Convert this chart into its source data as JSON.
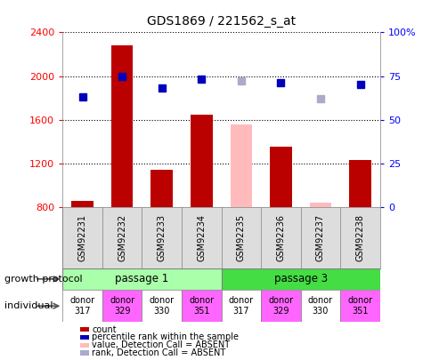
{
  "title": "GDS1869 / 221562_s_at",
  "samples": [
    "GSM92231",
    "GSM92232",
    "GSM92233",
    "GSM92234",
    "GSM92235",
    "GSM92236",
    "GSM92237",
    "GSM92238"
  ],
  "counts": [
    860,
    2280,
    1140,
    1650,
    null,
    1350,
    null,
    1230
  ],
  "absent_counts": [
    null,
    null,
    null,
    null,
    1560,
    null,
    840,
    null
  ],
  "percentile_ranks": [
    63,
    75,
    68,
    73,
    null,
    71,
    null,
    70
  ],
  "absent_ranks": [
    null,
    null,
    null,
    null,
    72,
    null,
    62,
    null
  ],
  "ylim_left": [
    800,
    2400
  ],
  "ylim_right": [
    0,
    100
  ],
  "yticks_left": [
    800,
    1200,
    1600,
    2000,
    2400
  ],
  "yticks_right": [
    0,
    25,
    50,
    75,
    100
  ],
  "bar_color": "#bb0000",
  "absent_bar_color": "#ffbbbb",
  "rank_color": "#0000bb",
  "absent_rank_color": "#aaaacc",
  "passage1_color": "#aaffaa",
  "passage3_color": "#44dd44",
  "individual_colors": [
    "#ffffff",
    "#ff66ff",
    "#ffffff",
    "#ff66ff",
    "#ffffff",
    "#ff66ff",
    "#ffffff",
    "#ff66ff"
  ],
  "individuals": [
    "donor\n317",
    "donor\n329",
    "donor\n330",
    "donor\n351",
    "donor\n317",
    "donor\n329",
    "donor\n330",
    "donor\n351"
  ],
  "growth_protocol_label": "growth protocol",
  "individual_label": "individual",
  "passage1_label": "passage 1",
  "passage3_label": "passage 3",
  "legend_items": [
    {
      "label": "count",
      "color": "#bb0000"
    },
    {
      "label": "percentile rank within the sample",
      "color": "#0000bb"
    },
    {
      "label": "value, Detection Call = ABSENT",
      "color": "#ffbbbb"
    },
    {
      "label": "rank, Detection Call = ABSENT",
      "color": "#aaaacc"
    }
  ],
  "fig_width": 4.85,
  "fig_height": 4.05,
  "fig_dpi": 100
}
